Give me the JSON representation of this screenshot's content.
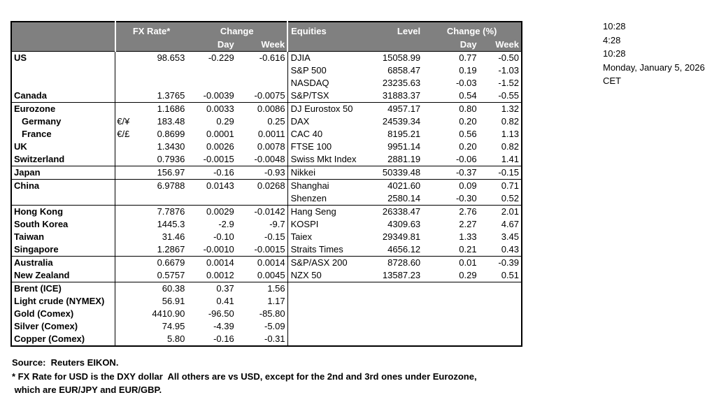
{
  "colors": {
    "header_bg": "#808080",
    "header_text": "#ffffff",
    "border": "#000000"
  },
  "table": {
    "header": {
      "fx_rate": "FX Rate*",
      "fx_change": "Change",
      "fx_day": "Day",
      "fx_week": "Week",
      "equities": "Equities",
      "level": "Level",
      "eq_change": "Change (%)",
      "eq_day": "Day",
      "eq_week": "Week"
    },
    "rows": [
      {
        "label": "US",
        "pair": "",
        "fx_rate": "98.653",
        "fx_day": "-0.229",
        "fx_week": "-0.616",
        "equity": "DJIA",
        "level": "15058.99",
        "eq_day": "0.77",
        "eq_week": "-0.50",
        "separator_below": false
      },
      {
        "label": "",
        "pair": "",
        "fx_rate": "",
        "fx_day": "",
        "fx_week": "",
        "equity": "S&P 500",
        "level": "6858.47",
        "eq_day": "0.19",
        "eq_week": "-1.03",
        "separator_below": false
      },
      {
        "label": "",
        "pair": "",
        "fx_rate": "",
        "fx_day": "",
        "fx_week": "",
        "equity": "NASDAQ",
        "level": "23235.63",
        "eq_day": "-0.03",
        "eq_week": "-1.52",
        "separator_below": false
      },
      {
        "label": "Canada",
        "pair": "",
        "fx_rate": "1.3765",
        "fx_day": "-0.0039",
        "fx_week": "-0.0075",
        "equity": "S&P/TSX",
        "level": "31883.37",
        "eq_day": "0.54",
        "eq_week": "-0.55",
        "separator_below": true
      },
      {
        "label": "Eurozone",
        "pair": "",
        "fx_rate": "1.1686",
        "fx_day": "0.0033",
        "fx_week": "0.0086",
        "equity": "DJ Eurostox 50",
        "level": "4957.17",
        "eq_day": "0.80",
        "eq_week": "1.32",
        "separator_below": false
      },
      {
        "label": "Germany",
        "indent": true,
        "pair": "€/¥",
        "fx_rate": "183.48",
        "fx_day": "0.29",
        "fx_week": "0.25",
        "equity": "DAX",
        "level": "24539.34",
        "eq_day": "0.20",
        "eq_week": "0.82",
        "separator_below": false
      },
      {
        "label": "France",
        "indent": true,
        "pair": "€/£",
        "fx_rate": "0.8699",
        "fx_day": "0.0001",
        "fx_week": "0.0011",
        "equity": "CAC 40",
        "level": "8195.21",
        "eq_day": "0.56",
        "eq_week": "1.13",
        "separator_below": false
      },
      {
        "label": "UK",
        "pair": "",
        "fx_rate": "1.3430",
        "fx_day": "0.0026",
        "fx_week": "0.0078",
        "equity": "FTSE 100",
        "level": "9951.14",
        "eq_day": "0.20",
        "eq_week": "0.82",
        "separator_below": false
      },
      {
        "label": "Switzerland",
        "pair": "",
        "fx_rate": "0.7936",
        "fx_day": "-0.0015",
        "fx_week": "-0.0048",
        "equity": "Swiss Mkt Index",
        "level": "2881.19",
        "eq_day": "-0.06",
        "eq_week": "1.41",
        "separator_below": true
      },
      {
        "label": "Japan",
        "pair": "",
        "fx_rate": "156.97",
        "fx_day": "-0.16",
        "fx_week": "-0.93",
        "equity": "Nikkei",
        "level": "50339.48",
        "eq_day": "-0.37",
        "eq_week": "-0.15",
        "separator_below": true
      },
      {
        "label": "China",
        "pair": "",
        "fx_rate": "6.9788",
        "fx_day": "0.0143",
        "fx_week": "0.0268",
        "equity": "Shanghai",
        "level": "4021.60",
        "eq_day": "0.09",
        "eq_week": "0.71",
        "separator_below": false
      },
      {
        "label": "",
        "pair": "",
        "fx_rate": "",
        "fx_day": "",
        "fx_week": "",
        "equity": "Shenzen",
        "level": "2580.14",
        "eq_day": "-0.30",
        "eq_week": "0.52",
        "separator_below": true
      },
      {
        "label": "Hong Kong",
        "pair": "",
        "fx_rate": "7.7876",
        "fx_day": "0.0029",
        "fx_week": "-0.0142",
        "equity": "Hang Seng",
        "level": "26338.47",
        "eq_day": "2.76",
        "eq_week": "2.01",
        "separator_below": false
      },
      {
        "label": "South Korea",
        "pair": "",
        "fx_rate": "1445.3",
        "fx_day": "-2.9",
        "fx_week": "-9.7",
        "equity": "KOSPI",
        "level": "4309.63",
        "eq_day": "2.27",
        "eq_week": "4.67",
        "separator_below": false
      },
      {
        "label": "Taiwan",
        "pair": "",
        "fx_rate": "31.46",
        "fx_day": "-0.10",
        "fx_week": "-0.15",
        "equity": "Taiex",
        "level": "29349.81",
        "eq_day": "1.33",
        "eq_week": "3.45",
        "separator_below": false
      },
      {
        "label": "Singapore",
        "pair": "",
        "fx_rate": "1.2867",
        "fx_day": "-0.0010",
        "fx_week": "-0.0015",
        "equity": "Straits Times",
        "level": "4656.12",
        "eq_day": "0.21",
        "eq_week": "0.43",
        "separator_below": true
      },
      {
        "label": "Australia",
        "pair": "",
        "fx_rate": "0.6679",
        "fx_day": "0.0014",
        "fx_week": "0.0014",
        "equity": "S&P/ASX 200",
        "level": "8728.60",
        "eq_day": "0.01",
        "eq_week": "-0.39",
        "separator_below": false
      },
      {
        "label": "New Zealand",
        "pair": "",
        "fx_rate": "0.5757",
        "fx_day": "0.0012",
        "fx_week": "0.0045",
        "equity": "NZX 50",
        "level": "13587.23",
        "eq_day": "0.29",
        "eq_week": "0.51",
        "separator_below": true
      },
      {
        "label": "Brent (ICE)",
        "pair": "",
        "fx_rate": "60.38",
        "fx_day": "0.37",
        "fx_week": "1.56",
        "equity": "",
        "level": "",
        "eq_day": "",
        "eq_week": "",
        "separator_below": false
      },
      {
        "label": "Light crude (NYMEX)",
        "pair": "",
        "fx_rate": "56.91",
        "fx_day": "0.41",
        "fx_week": "1.17",
        "equity": "",
        "level": "",
        "eq_day": "",
        "eq_week": "",
        "separator_below": false
      },
      {
        "label": "Gold (Comex)",
        "pair": "",
        "fx_rate": "4410.90",
        "fx_day": "-96.50",
        "fx_week": "-85.80",
        "equity": "",
        "level": "",
        "eq_day": "",
        "eq_week": "",
        "separator_below": false
      },
      {
        "label": "Silver (Comex)",
        "pair": "",
        "fx_rate": "74.95",
        "fx_day": "-4.39",
        "fx_week": "-5.09",
        "equity": "",
        "level": "",
        "eq_day": "",
        "eq_week": "",
        "separator_below": false
      },
      {
        "label": "Copper (Comex)",
        "pair": "",
        "fx_rate": "5.80",
        "fx_day": "-0.16",
        "fx_week": "-0.31",
        "equity": "",
        "level": "",
        "eq_day": "",
        "eq_week": "",
        "separator_below": false
      }
    ]
  },
  "timestamps": [
    "10:28",
    "4:28",
    "10:28",
    "Monday, January 5, 2026",
    "CET"
  ],
  "footer": {
    "source": "Source:  Reuters EIKON.",
    "note1": "* FX Rate for USD is the DXY dollar  All others are vs USD, except for the 2nd and 3rd ones under Eurozone,",
    "note2": " which are EUR/JPY and EUR/GBP."
  }
}
